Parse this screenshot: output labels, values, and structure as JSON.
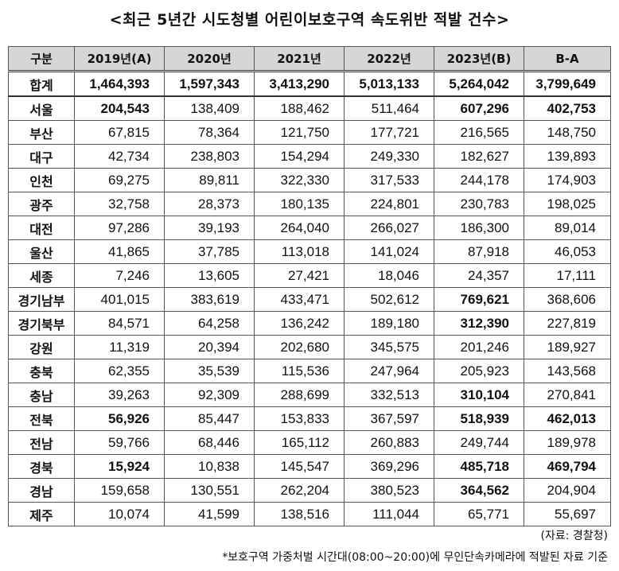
{
  "title": "<최근 5년간 시도청별 어린이보호구역 속도위반 적발 건수>",
  "columns": [
    "구분",
    "2019년(A)",
    "2020년",
    "2021년",
    "2022년",
    "2023년(B)",
    "B-A"
  ],
  "rows": [
    {
      "region": "합계",
      "values": [
        "1,464,393",
        "1,597,343",
        "3,413,290",
        "5,013,133",
        "5,264,042",
        "3,799,649"
      ],
      "bold": [
        true,
        true,
        true,
        true,
        true,
        true
      ]
    },
    {
      "region": "서울",
      "values": [
        "204,543",
        "138,409",
        "188,462",
        "511,464",
        "607,296",
        "402,753"
      ],
      "bold": [
        true,
        false,
        false,
        false,
        true,
        true
      ]
    },
    {
      "region": "부산",
      "values": [
        "67,815",
        "78,364",
        "121,750",
        "177,721",
        "216,565",
        "148,750"
      ],
      "bold": [
        false,
        false,
        false,
        false,
        false,
        false
      ]
    },
    {
      "region": "대구",
      "values": [
        "42,734",
        "238,803",
        "154,294",
        "249,330",
        "182,627",
        "139,893"
      ],
      "bold": [
        false,
        false,
        false,
        false,
        false,
        false
      ]
    },
    {
      "region": "인천",
      "values": [
        "69,275",
        "89,811",
        "322,330",
        "317,533",
        "244,178",
        "174,903"
      ],
      "bold": [
        false,
        false,
        false,
        false,
        false,
        false
      ]
    },
    {
      "region": "광주",
      "values": [
        "32,758",
        "28,373",
        "180,135",
        "224,801",
        "230,783",
        "198,025"
      ],
      "bold": [
        false,
        false,
        false,
        false,
        false,
        false
      ]
    },
    {
      "region": "대전",
      "values": [
        "97,286",
        "39,193",
        "264,040",
        "266,027",
        "186,300",
        "89,014"
      ],
      "bold": [
        false,
        false,
        false,
        false,
        false,
        false
      ]
    },
    {
      "region": "울산",
      "values": [
        "41,865",
        "37,785",
        "113,018",
        "141,024",
        "87,918",
        "46,053"
      ],
      "bold": [
        false,
        false,
        false,
        false,
        false,
        false
      ]
    },
    {
      "region": "세종",
      "values": [
        "7,246",
        "13,605",
        "27,421",
        "18,046",
        "24,357",
        "17,111"
      ],
      "bold": [
        false,
        false,
        false,
        false,
        false,
        false
      ]
    },
    {
      "region": "경기남부",
      "values": [
        "401,015",
        "383,619",
        "433,471",
        "502,612",
        "769,621",
        "368,606"
      ],
      "bold": [
        false,
        false,
        false,
        false,
        true,
        false
      ]
    },
    {
      "region": "경기북부",
      "values": [
        "84,571",
        "64,258",
        "136,242",
        "189,180",
        "312,390",
        "227,819"
      ],
      "bold": [
        false,
        false,
        false,
        false,
        true,
        false
      ]
    },
    {
      "region": "강원",
      "values": [
        "11,319",
        "20,394",
        "202,680",
        "345,575",
        "201,246",
        "189,927"
      ],
      "bold": [
        false,
        false,
        false,
        false,
        false,
        false
      ]
    },
    {
      "region": "충북",
      "values": [
        "62,355",
        "35,539",
        "115,536",
        "247,964",
        "205,923",
        "143,568"
      ],
      "bold": [
        false,
        false,
        false,
        false,
        false,
        false
      ]
    },
    {
      "region": "충남",
      "values": [
        "39,263",
        "92,309",
        "288,699",
        "332,513",
        "310,104",
        "270,841"
      ],
      "bold": [
        false,
        false,
        false,
        false,
        true,
        false
      ]
    },
    {
      "region": "전북",
      "values": [
        "56,926",
        "85,447",
        "153,833",
        "367,597",
        "518,939",
        "462,013"
      ],
      "bold": [
        true,
        false,
        false,
        false,
        true,
        true
      ]
    },
    {
      "region": "전남",
      "values": [
        "59,766",
        "68,446",
        "165,112",
        "260,883",
        "249,744",
        "189,978"
      ],
      "bold": [
        false,
        false,
        false,
        false,
        false,
        false
      ]
    },
    {
      "region": "경북",
      "values": [
        "15,924",
        "10,838",
        "145,547",
        "369,296",
        "485,718",
        "469,794"
      ],
      "bold": [
        true,
        false,
        false,
        false,
        true,
        true
      ]
    },
    {
      "region": "경남",
      "values": [
        "159,658",
        "130,551",
        "262,204",
        "380,523",
        "364,562",
        "204,904"
      ],
      "bold": [
        false,
        false,
        false,
        false,
        true,
        false
      ]
    },
    {
      "region": "제주",
      "values": [
        "10,074",
        "41,599",
        "138,516",
        "111,044",
        "65,771",
        "55,697"
      ],
      "bold": [
        false,
        false,
        false,
        false,
        false,
        false
      ]
    }
  ],
  "source": "(자료: 경찰청)",
  "note": "*보호구역 가중처벌 시간대(08:00~20:00)에 무인단속카메라에 적발된 자료 기준"
}
